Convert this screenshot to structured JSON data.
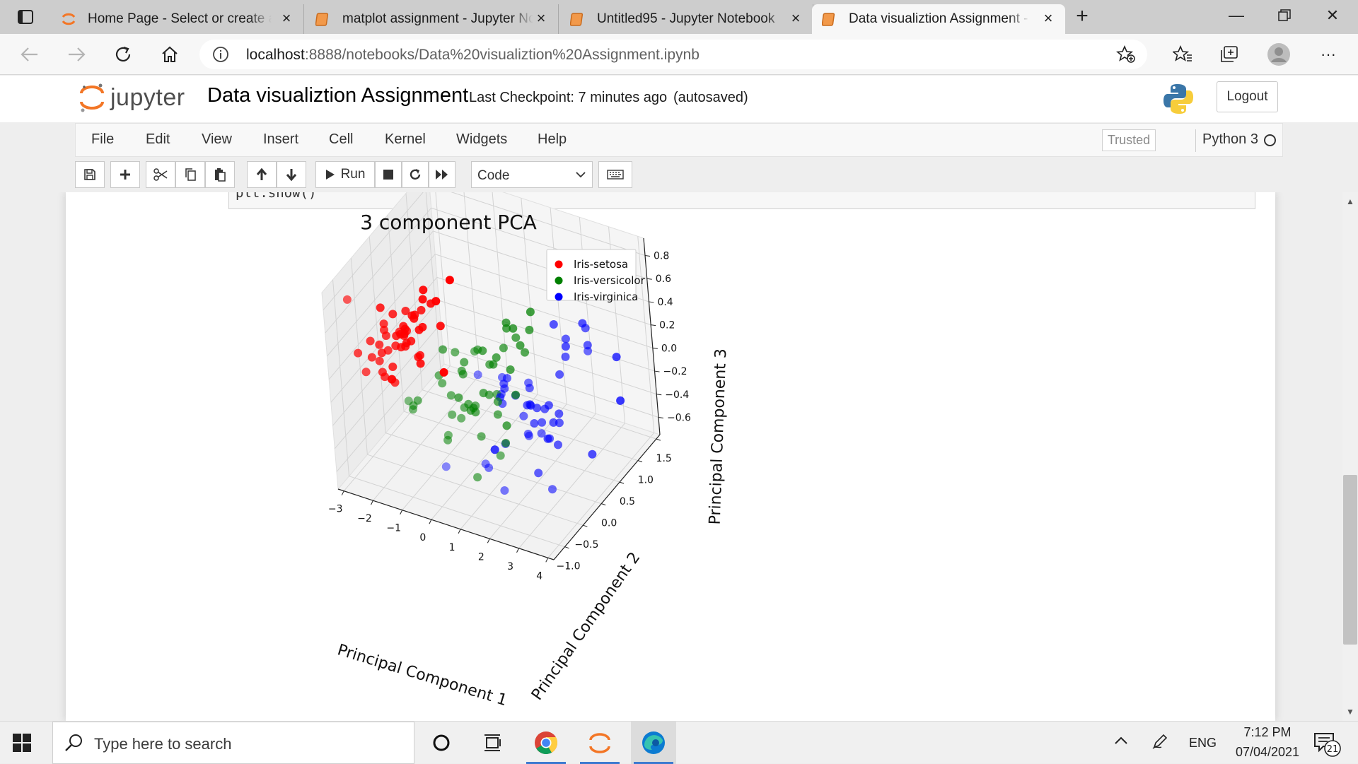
{
  "browser": {
    "tabs": [
      {
        "title": "Home Page - Select or create a notebook",
        "icon": "jupyter-orbit-icon",
        "active": false
      },
      {
        "title": "matplot assignment - Jupyter Notebook",
        "icon": "notebook-icon",
        "active": false
      },
      {
        "title": "Untitled95 - Jupyter Notebook",
        "icon": "notebook-icon",
        "active": false
      },
      {
        "title": "Data visualiztion Assignment - Jupyter Notebook",
        "icon": "notebook-icon",
        "active": true
      }
    ],
    "url_host": "localhost",
    "url_path": ":8888/notebooks/Data%20visualiztion%20Assignment.ipynb"
  },
  "jupyter": {
    "logo_text": "jupyter",
    "notebook_title": "Data visualiztion Assignment",
    "checkpoint": "Last Checkpoint: 7 minutes ago",
    "autosave": "(autosaved)",
    "logout_label": "Logout",
    "menu": [
      "File",
      "Edit",
      "View",
      "Insert",
      "Cell",
      "Kernel",
      "Widgets",
      "Help"
    ],
    "trusted_label": "Trusted",
    "kernel_name": "Python 3",
    "toolbar": {
      "run_label": "Run",
      "cell_type": "Code"
    },
    "code_tail": "plt.show()"
  },
  "chart_data": {
    "type": "scatter",
    "projection": "3d",
    "title": "3 component PCA",
    "xlabel": "Principal Component 1",
    "ylabel": "Principal Component 2",
    "zlabel": "Principal Component 3",
    "x_ticks": [
      "−3",
      "−2",
      "−1",
      "0",
      "1",
      "2",
      "3",
      "4"
    ],
    "y_ticks": [
      "−1.0",
      "−0.5",
      "0.0",
      "0.5",
      "1.0",
      "1.5"
    ],
    "z_ticks": [
      "−0.6",
      "−0.4",
      "−0.2",
      "0.0",
      "0.2",
      "0.4",
      "0.6",
      "0.8"
    ],
    "xlim": [
      -3.2,
      4.2
    ],
    "ylim": [
      -1.3,
      1.6
    ],
    "zlim": [
      -0.75,
      0.95
    ],
    "legend_position": "top-right",
    "grid": true,
    "series": [
      {
        "name": "Iris-setosa",
        "color": "#ff0000",
        "points": [
          [
            -2.7,
            0.32,
            0.03
          ],
          [
            -2.7,
            -0.18,
            0.25
          ],
          [
            -2.9,
            -0.14,
            0.02
          ],
          [
            -2.75,
            -0.32,
            0.03
          ],
          [
            -2.73,
            0.33,
            0.09
          ],
          [
            -2.28,
            0.74,
            0.17
          ],
          [
            -2.82,
            -0.09,
            0.26
          ],
          [
            -2.63,
            0.16,
            -0.02
          ],
          [
            -2.89,
            -0.58,
            0.02
          ],
          [
            -2.67,
            -0.11,
            -0.2
          ],
          [
            -2.51,
            0.65,
            -0.02
          ],
          [
            -2.61,
            0.01,
            0.05
          ],
          [
            -2.79,
            -0.24,
            -0.1
          ],
          [
            -3.22,
            -0.51,
            0.13
          ],
          [
            -2.64,
            1.18,
            -0.62
          ],
          [
            -2.39,
            1.34,
            0.14
          ],
          [
            -2.62,
            0.82,
            0.23
          ],
          [
            -2.65,
            0.31,
            0.08
          ],
          [
            -2.2,
            0.88,
            -0.07
          ],
          [
            -2.59,
            0.51,
            0.1
          ],
          [
            -2.31,
            0.39,
            -0.15
          ],
          [
            -2.54,
            0.43,
            0.16
          ],
          [
            -3.22,
            0.14,
            0.28
          ],
          [
            -2.3,
            0.1,
            0.17
          ],
          [
            -2.36,
            -0.04,
            0.21
          ],
          [
            -2.51,
            -0.15,
            -0.2
          ],
          [
            -2.47,
            0.14,
            0.1
          ],
          [
            -2.56,
            0.37,
            -0.04
          ],
          [
            -2.64,
            0.31,
            -0.04
          ],
          [
            -2.63,
            -0.19,
            0.21
          ],
          [
            -2.59,
            -0.2,
            0.09
          ],
          [
            -2.41,
            0.41,
            -0.18
          ],
          [
            -2.65,
            0.81,
            0.15
          ],
          [
            -2.6,
            1.1,
            0.03
          ],
          [
            -2.67,
            -0.11,
            -0.2
          ],
          [
            -2.87,
            0.08,
            -0.18
          ],
          [
            -2.63,
            0.61,
            -0.33
          ],
          [
            -2.8,
            0.14,
            0.26
          ],
          [
            -2.98,
            -0.34,
            0.05
          ],
          [
            -2.59,
            0.24,
            -0.04
          ],
          [
            -2.77,
            0.27,
            0.04
          ],
          [
            -2.85,
            -0.93,
            0.78
          ],
          [
            -2.99,
            -0.34,
            0.19
          ],
          [
            -2.41,
            0.19,
            0.3
          ],
          [
            -2.21,
            0.44,
            0.23
          ],
          [
            -2.71,
            -0.25,
            -0.13
          ],
          [
            -2.54,
            0.5,
            0.14
          ],
          [
            -2.84,
            -0.23,
            0.13
          ],
          [
            -2.54,
            0.58,
            -0.02
          ],
          [
            -2.7,
            0.11,
            0.09
          ]
        ]
      },
      {
        "name": "Iris-versicolor",
        "color": "#008000",
        "points": [
          [
            1.28,
            0.69,
            0.41
          ],
          [
            0.93,
            0.32,
            0.02
          ],
          [
            1.46,
            0.5,
            0.34
          ],
          [
            0.18,
            -0.83,
            -0.18
          ],
          [
            1.09,
            0.08,
            0.31
          ],
          [
            0.64,
            -0.42,
            -0.04
          ],
          [
            1.1,
            0.28,
            -0.17
          ],
          [
            -0.75,
            -1.0,
            0.03
          ],
          [
            1.04,
            0.23,
            0.42
          ],
          [
            -0.01,
            -0.72,
            -0.28
          ],
          [
            -0.51,
            -1.26,
            0.22
          ],
          [
            0.51,
            -0.1,
            -0.06
          ],
          [
            0.26,
            -0.55,
            0.44
          ],
          [
            0.98,
            -0.12,
            -0.2
          ],
          [
            -0.17,
            -0.25,
            -0.1
          ],
          [
            0.93,
            0.47,
            0.32
          ],
          [
            0.66,
            -0.35,
            -0.33
          ],
          [
            0.24,
            -0.33,
            0.27
          ],
          [
            0.94,
            -0.54,
            0.5
          ],
          [
            0.04,
            -0.58,
            0.06
          ],
          [
            1.12,
            -0.08,
            -0.45
          ],
          [
            0.36,
            0.07,
            0.23
          ],
          [
            1.3,
            -0.33,
            0.08
          ],
          [
            0.92,
            -0.18,
            0.25
          ],
          [
            0.71,
            0.15,
            0.17
          ],
          [
            0.9,
            0.33,
            0.42
          ],
          [
            1.33,
            0.24,
            0.36
          ],
          [
            1.56,
            0.27,
            0.24
          ],
          [
            0.82,
            -0.18,
            -0.02
          ],
          [
            -0.39,
            -0.39,
            0.35
          ],
          [
            -0.07,
            -0.7,
            0.2
          ],
          [
            -0.19,
            -0.68,
            0.25
          ],
          [
            0.14,
            -0.31,
            0.15
          ],
          [
            1.38,
            -0.42,
            -0.41
          ],
          [
            0.59,
            -0.48,
            -0.64
          ],
          [
            0.81,
            0.2,
            -0.43
          ],
          [
            1.22,
            0.41,
            0.22
          ],
          [
            0.81,
            -0.37,
            0.44
          ],
          [
            0.25,
            -0.27,
            -0.17
          ],
          [
            0.16,
            -0.68,
            -0.06
          ],
          [
            0.46,
            -0.67,
            -0.07
          ],
          [
            0.89,
            -0.03,
            -0.13
          ],
          [
            0.23,
            -0.4,
            0.22
          ],
          [
            -0.71,
            -1.01,
            0.07
          ],
          [
            0.36,
            -0.5,
            -0.05
          ],
          [
            0.33,
            -0.21,
            -0.2
          ],
          [
            0.38,
            -0.29,
            -0.13
          ],
          [
            0.64,
            0.11,
            0.12
          ],
          [
            -0.91,
            -0.75,
            0.0
          ],
          [
            0.3,
            -0.35,
            -0.08
          ]
        ]
      },
      {
        "name": "Iris-virginica",
        "color": "#0000ff",
        "points": [
          [
            2.53,
            -0.01,
            -0.76
          ],
          [
            1.41,
            -0.57,
            -0.3
          ],
          [
            2.62,
            0.34,
            0.11
          ],
          [
            1.97,
            -0.18,
            -0.11
          ],
          [
            2.35,
            -0.04,
            -0.28
          ],
          [
            3.4,
            0.55,
            0.35
          ],
          [
            0.52,
            -1.19,
            -0.29
          ],
          [
            2.93,
            0.35,
            0.44
          ],
          [
            2.32,
            -0.24,
            0.23
          ],
          [
            2.92,
            0.78,
            -0.72
          ],
          [
            1.66,
            0.24,
            -0.2
          ],
          [
            1.8,
            -0.22,
            0.07
          ],
          [
            2.17,
            0.22,
            -0.18
          ],
          [
            1.34,
            -0.78,
            -0.35
          ],
          [
            1.59,
            -0.54,
            -0.65
          ],
          [
            1.9,
            0.12,
            -0.29
          ],
          [
            1.95,
            0.04,
            0.05
          ],
          [
            3.49,
            1.18,
            0.02
          ],
          [
            3.8,
            0.26,
            0.44
          ],
          [
            1.3,
            -0.76,
            0.41
          ],
          [
            2.43,
            0.38,
            -0.26
          ],
          [
            1.2,
            -0.61,
            -0.46
          ],
          [
            3.5,
            0.46,
            0.54
          ],
          [
            1.39,
            -0.2,
            0.13
          ],
          [
            2.28,
            0.33,
            -0.33
          ],
          [
            2.61,
            0.56,
            0.27
          ],
          [
            1.26,
            -0.18,
            -0.06
          ],
          [
            1.29,
            -0.12,
            0.05
          ],
          [
            2.12,
            -0.21,
            -0.24
          ],
          [
            2.39,
            0.46,
            0.48
          ],
          [
            2.84,
            0.37,
            0.27
          ],
          [
            3.23,
            1.37,
            -0.45
          ],
          [
            2.16,
            -0.22,
            -0.25
          ],
          [
            1.44,
            -0.14,
            0.16
          ],
          [
            1.78,
            -0.5,
            0.33
          ],
          [
            3.08,
            0.69,
            0.46
          ],
          [
            2.14,
            0.14,
            -0.27
          ],
          [
            1.9,
            0.05,
            -0.1
          ],
          [
            1.17,
            -0.16,
            -0.02
          ],
          [
            2.11,
            0.37,
            -0.21
          ],
          [
            2.31,
            0.18,
            -0.41
          ],
          [
            1.92,
            0.41,
            -0.53
          ],
          [
            1.41,
            -0.57,
            -0.3
          ],
          [
            2.56,
            0.28,
            -0.29
          ],
          [
            2.42,
            0.3,
            -0.5
          ],
          [
            1.94,
            0.19,
            -0.18
          ],
          [
            1.53,
            -0.38,
            0.12
          ],
          [
            1.76,
            0.08,
            -0.13
          ],
          [
            1.9,
            0.12,
            -0.72
          ],
          [
            1.39,
            -0.28,
            -0.36
          ]
        ]
      }
    ]
  },
  "taskbar": {
    "search_placeholder": "Type here to search",
    "language": "ENG",
    "time": "7:12 PM",
    "date": "07/04/2021",
    "notification_count": "21"
  }
}
